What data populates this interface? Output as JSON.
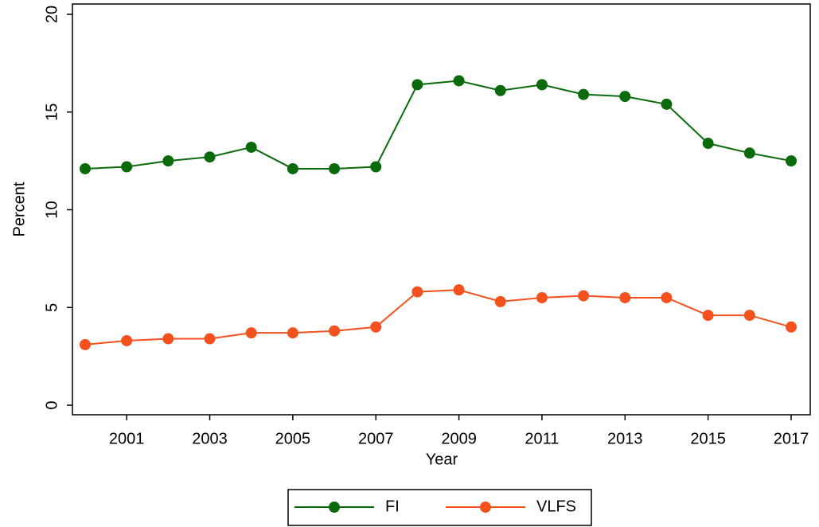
{
  "chart_data": {
    "type": "line",
    "x": [
      2000,
      2001,
      2002,
      2003,
      2004,
      2005,
      2006,
      2007,
      2008,
      2009,
      2010,
      2011,
      2012,
      2013,
      2014,
      2015,
      2016,
      2017
    ],
    "series": [
      {
        "name": "FI",
        "color": "#0b6a0b",
        "values": [
          12.1,
          12.2,
          12.5,
          12.7,
          13.2,
          12.1,
          12.1,
          12.2,
          16.4,
          16.6,
          16.1,
          16.4,
          15.9,
          15.8,
          15.4,
          13.4,
          12.9,
          12.5
        ]
      },
      {
        "name": "VLFS",
        "color": "#f4511e",
        "values": [
          3.1,
          3.3,
          3.4,
          3.4,
          3.7,
          3.7,
          3.8,
          4.0,
          5.8,
          5.9,
          5.3,
          5.5,
          5.6,
          5.5,
          5.5,
          4.6,
          4.6,
          4.0
        ]
      }
    ],
    "xlabel": "Year",
    "ylabel": "Percent",
    "xlim": [
      2000,
      2017
    ],
    "xticks": [
      2001,
      2003,
      2005,
      2007,
      2009,
      2011,
      2013,
      2015,
      2017
    ],
    "ylim": [
      0,
      20
    ],
    "yticks": [
      0,
      5,
      10,
      15,
      20
    ],
    "legend": "bottom"
  }
}
